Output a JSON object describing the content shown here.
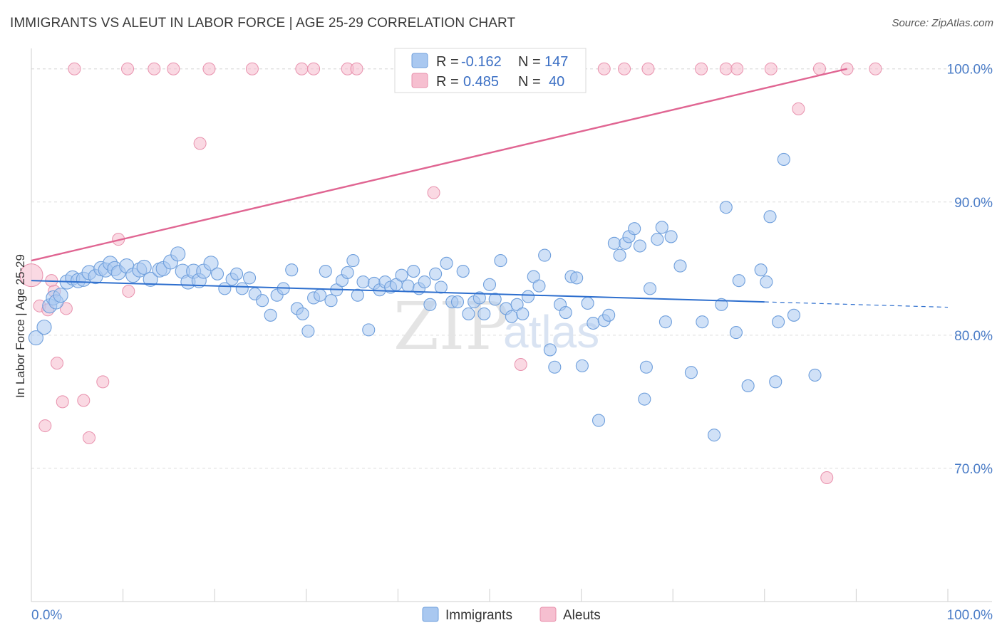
{
  "title": "IMMIGRANTS VS ALEUT IN LABOR FORCE | AGE 25-29 CORRELATION CHART",
  "source": "Source: ZipAtlas.com",
  "watermark": {
    "zip": "ZIP",
    "atlas": "atlas"
  },
  "legend_top": {
    "immigrants": {
      "r_label": "R =",
      "r_value": "-0.162",
      "n_label": "N =",
      "n_value": "147"
    },
    "aleuts": {
      "r_label": "R =",
      "r_value": "0.485",
      "n_label": "N =",
      "n_value": "40"
    }
  },
  "colors": {
    "immigrants_fill": "#a9c8f0",
    "immigrants_stroke": "#6f9fdc",
    "immigrants_line": "#2e6fce",
    "aleuts_fill": "#f6bfd0",
    "aleuts_stroke": "#e891ad",
    "aleuts_line": "#e06592",
    "axis_text": "#4a7cc7"
  },
  "chart_data": {
    "type": "scatter",
    "title": "IMMIGRANTS VS ALEUT IN LABOR FORCE | AGE 25-29 CORRELATION CHART",
    "xlabel": "",
    "ylabel": "In Labor Force | Age 25-29",
    "xlim": [
      0,
      100
    ],
    "ylim": [
      60,
      101
    ],
    "x_tick_labels": [
      "0.0%",
      "100.0%"
    ],
    "y_ticks": [
      70,
      80,
      90,
      100
    ],
    "y_tick_labels": [
      "70.0%",
      "80.0%",
      "90.0%",
      "100.0%"
    ],
    "grid": true,
    "legend": [
      "Immigrants",
      "Aleuts"
    ],
    "series": [
      {
        "name": "Immigrants",
        "trend": {
          "x": [
            0,
            80,
            100
          ],
          "y": [
            84.1,
            82.5,
            82.1
          ],
          "solid_until": 80
        },
        "points": [
          [
            0.5,
            79.8
          ],
          [
            1.4,
            80.6
          ],
          [
            2.0,
            82.2
          ],
          [
            2.4,
            82.8
          ],
          [
            2.7,
            82.5
          ],
          [
            3.2,
            83.0
          ],
          [
            3.9,
            84.0
          ],
          [
            4.5,
            84.3
          ],
          [
            5.1,
            84.1
          ],
          [
            5.7,
            84.2
          ],
          [
            6.3,
            84.7
          ],
          [
            7.0,
            84.4
          ],
          [
            7.6,
            85.0
          ],
          [
            8.1,
            84.9
          ],
          [
            8.6,
            85.4
          ],
          [
            9.1,
            85.0
          ],
          [
            9.5,
            84.7
          ],
          [
            10.4,
            85.2
          ],
          [
            11.1,
            84.5
          ],
          [
            11.8,
            84.9
          ],
          [
            12.3,
            85.1
          ],
          [
            13.0,
            84.2
          ],
          [
            14.0,
            84.9
          ],
          [
            14.4,
            85.0
          ],
          [
            15.2,
            85.5
          ],
          [
            16.0,
            86.1
          ],
          [
            16.5,
            84.8
          ],
          [
            17.1,
            84.0
          ],
          [
            17.7,
            84.8
          ],
          [
            18.3,
            84.1
          ],
          [
            18.8,
            84.8
          ],
          [
            19.6,
            85.4
          ],
          [
            20.3,
            84.6
          ],
          [
            21.1,
            83.5
          ],
          [
            21.9,
            84.2
          ],
          [
            22.4,
            84.6
          ],
          [
            23.0,
            83.5
          ],
          [
            23.8,
            84.3
          ],
          [
            24.4,
            83.1
          ],
          [
            25.2,
            82.6
          ],
          [
            26.1,
            81.5
          ],
          [
            26.8,
            83.0
          ],
          [
            27.5,
            83.5
          ],
          [
            28.4,
            84.9
          ],
          [
            29.0,
            82.0
          ],
          [
            29.6,
            81.6
          ],
          [
            30.2,
            80.3
          ],
          [
            30.8,
            82.8
          ],
          [
            31.5,
            83.0
          ],
          [
            32.1,
            84.8
          ],
          [
            32.7,
            82.6
          ],
          [
            33.3,
            83.4
          ],
          [
            33.9,
            84.1
          ],
          [
            34.5,
            84.7
          ],
          [
            35.1,
            85.6
          ],
          [
            35.6,
            83.0
          ],
          [
            36.2,
            84.0
          ],
          [
            36.8,
            80.4
          ],
          [
            37.4,
            83.9
          ],
          [
            38.0,
            83.4
          ],
          [
            38.6,
            84.0
          ],
          [
            39.2,
            83.6
          ],
          [
            39.8,
            83.8
          ],
          [
            40.4,
            84.5
          ],
          [
            41.1,
            83.7
          ],
          [
            41.7,
            84.8
          ],
          [
            42.3,
            83.5
          ],
          [
            42.9,
            84.0
          ],
          [
            43.5,
            82.3
          ],
          [
            44.1,
            84.6
          ],
          [
            44.7,
            83.6
          ],
          [
            45.3,
            85.4
          ],
          [
            45.9,
            82.5
          ],
          [
            46.5,
            82.5
          ],
          [
            47.1,
            84.8
          ],
          [
            47.7,
            81.6
          ],
          [
            48.3,
            82.5
          ],
          [
            48.9,
            82.8
          ],
          [
            49.4,
            81.6
          ],
          [
            50.0,
            83.8
          ],
          [
            50.6,
            82.7
          ],
          [
            51.2,
            85.6
          ],
          [
            51.8,
            82.0
          ],
          [
            52.4,
            81.4
          ],
          [
            53.0,
            82.3
          ],
          [
            53.6,
            81.6
          ],
          [
            54.2,
            82.9
          ],
          [
            54.8,
            84.4
          ],
          [
            55.4,
            83.7
          ],
          [
            56.0,
            86.0
          ],
          [
            56.6,
            78.9
          ],
          [
            57.1,
            77.6
          ],
          [
            57.7,
            82.3
          ],
          [
            58.3,
            81.7
          ],
          [
            58.9,
            84.4
          ],
          [
            59.5,
            84.3
          ],
          [
            60.1,
            77.7
          ],
          [
            60.7,
            82.4
          ],
          [
            61.3,
            80.9
          ],
          [
            61.9,
            73.6
          ],
          [
            62.5,
            81.1
          ],
          [
            63.0,
            81.5
          ],
          [
            63.6,
            86.9
          ],
          [
            64.2,
            86.0
          ],
          [
            64.8,
            86.9
          ],
          [
            65.2,
            87.4
          ],
          [
            65.8,
            88.0
          ],
          [
            66.4,
            86.7
          ],
          [
            66.9,
            75.2
          ],
          [
            67.1,
            77.6
          ],
          [
            67.5,
            83.5
          ],
          [
            68.3,
            87.2
          ],
          [
            68.8,
            88.1
          ],
          [
            69.2,
            81.0
          ],
          [
            69.8,
            87.4
          ],
          [
            70.8,
            85.2
          ],
          [
            72.0,
            77.2
          ],
          [
            73.2,
            81.0
          ],
          [
            74.5,
            72.5
          ],
          [
            75.3,
            82.3
          ],
          [
            75.8,
            89.6
          ],
          [
            76.9,
            80.2
          ],
          [
            77.2,
            84.1
          ],
          [
            78.2,
            76.2
          ],
          [
            79.6,
            84.9
          ],
          [
            80.2,
            84.0
          ],
          [
            80.6,
            88.9
          ],
          [
            81.2,
            76.5
          ],
          [
            81.5,
            81.0
          ],
          [
            82.1,
            93.2
          ],
          [
            83.2,
            81.5
          ],
          [
            85.5,
            77.0
          ]
        ]
      },
      {
        "name": "Aleuts",
        "trend": {
          "x": [
            0,
            89
          ],
          "y": [
            85.6,
            100.0
          ]
        },
        "points": [
          [
            0.0,
            84.5
          ],
          [
            0.9,
            82.2
          ],
          [
            1.5,
            73.2
          ],
          [
            1.8,
            81.9
          ],
          [
            2.2,
            84.1
          ],
          [
            2.5,
            83.3
          ],
          [
            2.8,
            77.9
          ],
          [
            3.4,
            75.0
          ],
          [
            3.8,
            82.0
          ],
          [
            4.7,
            100.0
          ],
          [
            5.7,
            75.1
          ],
          [
            6.3,
            72.3
          ],
          [
            7.8,
            76.5
          ],
          [
            9.5,
            87.2
          ],
          [
            10.5,
            100.0
          ],
          [
            10.6,
            83.3
          ],
          [
            13.4,
            100.0
          ],
          [
            15.5,
            100.0
          ],
          [
            18.4,
            94.4
          ],
          [
            19.4,
            100.0
          ],
          [
            24.1,
            100.0
          ],
          [
            29.5,
            100.0
          ],
          [
            30.8,
            100.0
          ],
          [
            34.5,
            100.0
          ],
          [
            35.5,
            100.0
          ],
          [
            43.9,
            90.7
          ],
          [
            53.4,
            77.8
          ],
          [
            62.5,
            100.0
          ],
          [
            64.7,
            100.0
          ],
          [
            67.3,
            100.0
          ],
          [
            73.1,
            100.0
          ],
          [
            75.8,
            100.0
          ],
          [
            77.0,
            100.0
          ],
          [
            80.7,
            100.0
          ],
          [
            83.7,
            97.0
          ],
          [
            86.0,
            100.0
          ],
          [
            86.8,
            69.3
          ],
          [
            89.0,
            100.0
          ],
          [
            92.1,
            100.0
          ]
        ]
      }
    ]
  },
  "bottom_legend": {
    "immigrants": "Immigrants",
    "aleuts": "Aleuts"
  }
}
